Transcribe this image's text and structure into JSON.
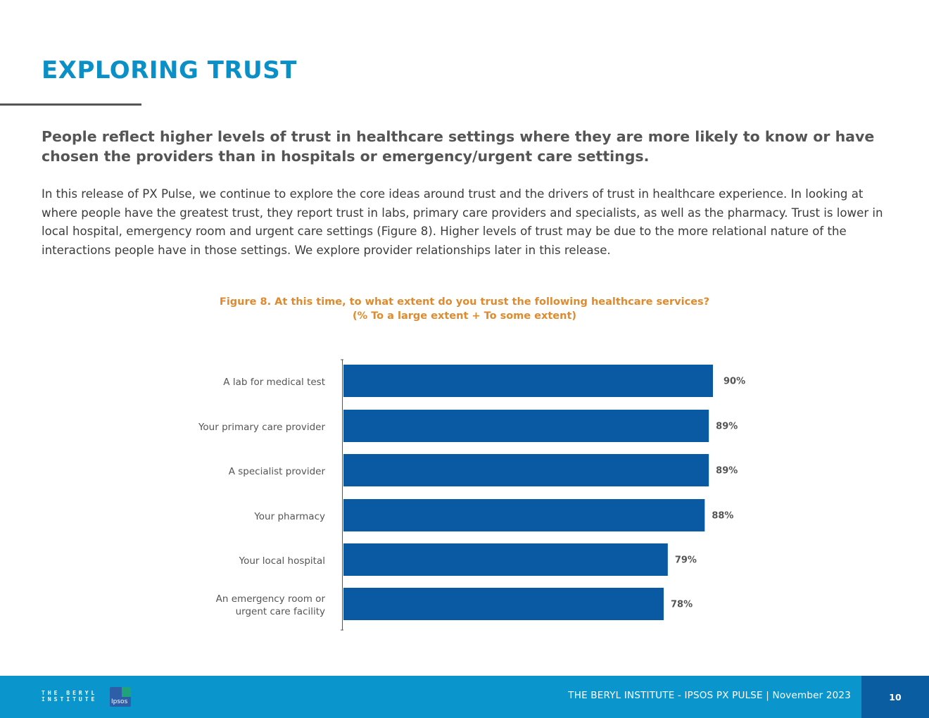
{
  "header": {
    "title": "EXPLORING TRUST"
  },
  "intro": {
    "subhead": "People reflect higher levels of trust in healthcare settings where they are more likely to know or have chosen the providers than in hospitals or emergency/urgent care settings.",
    "body": "In this release of PX Pulse, we continue to explore the core ideas around trust and the drivers of trust in healthcare experience. In looking at where people have the greatest trust, they report trust in labs, primary care providers and specialists, as well as the pharmacy. Trust is lower in local hospital, emergency room and urgent care settings (Figure 8). Higher levels of trust may be due to the more relational nature of the interactions people have in those settings. We explore provider relationships later in this release."
  },
  "chart_data": {
    "type": "bar",
    "orientation": "horizontal",
    "title": "Figure 8. At this time, to what extent do you trust the following healthcare services?",
    "subtitle": "(% To a large extent + To some extent)",
    "categories": [
      [
        "A lab for medical test"
      ],
      [
        "Your primary care provider"
      ],
      [
        "A specialist provider"
      ],
      [
        "Your pharmacy"
      ],
      [
        "Your local hospital"
      ],
      [
        "An emergency room or",
        "urgent care facility"
      ]
    ],
    "values": [
      90,
      89,
      89,
      88,
      79,
      78
    ],
    "value_labels": [
      "90%",
      "89%",
      "89%",
      "88%",
      "79%",
      "78%"
    ],
    "xlim": [
      0,
      100
    ],
    "bar_color": "#0a5aa3",
    "label_color": "#555555",
    "grid": false,
    "legend": "none"
  },
  "footer": {
    "logo_line1": "THE BERYL",
    "logo_line2": "INSTITUTE",
    "ipsos_label": "Ipsos",
    "text": "THE BERYL INSTITUTE - IPSOS PX PULSE | November 2023",
    "page_number": "10"
  },
  "colors": {
    "title": "#0a8fc7",
    "caption": "#e08a2e",
    "footer_bg": "#0a96cc",
    "page_box_bg": "#0a5da1"
  }
}
